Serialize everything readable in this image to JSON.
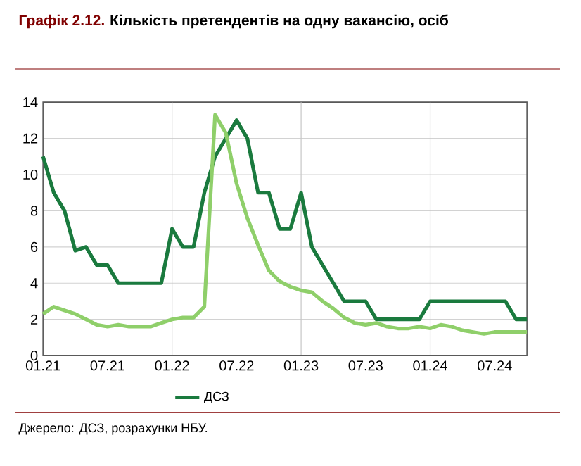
{
  "chart_data": {
    "type": "line",
    "title": "Графік 2.12.",
    "subtitle": "Кількість претендентів на одну вакансію, осіб",
    "annotations": [
      "Джерело: ДСЗ, розрахунки НБУ."
    ],
    "x": [
      "2021-01",
      "2021-02",
      "2021-03",
      "2021-04",
      "2021-05",
      "2021-06",
      "2021-07",
      "2021-08",
      "2021-09",
      "2021-10",
      "2021-11",
      "2021-12",
      "2022-01",
      "2022-02",
      "2022-03",
      "2022-04",
      "2022-05",
      "2022-06",
      "2022-07",
      "2022-08",
      "2022-09",
      "2022-10",
      "2022-11",
      "2022-12",
      "2023-01",
      "2023-02",
      "2023-03",
      "2023-04",
      "2023-05",
      "2023-06",
      "2023-07",
      "2023-08",
      "2023-09",
      "2023-10",
      "2023-11",
      "2023-12",
      "2024-01",
      "2024-02",
      "2024-03",
      "2024-04",
      "2024-05",
      "2024-06",
      "2024-07",
      "2024-08",
      "2024-09",
      "2024-10"
    ],
    "series": [
      {
        "name": "ДСЗ",
        "color": "#1a7a3e",
        "values": [
          11,
          9,
          8,
          5.8,
          6,
          5,
          5,
          4,
          4,
          4,
          4,
          4,
          7,
          6,
          6,
          9,
          11,
          12,
          13,
          12,
          9,
          9,
          7,
          7,
          9,
          6,
          5,
          4,
          3,
          3,
          3,
          2,
          2,
          2,
          2,
          2,
          3,
          3,
          3,
          3,
          3,
          3,
          3,
          3,
          2,
          2
        ]
      },
      {
        "color": "#8fcf6a",
        "values": [
          2.3,
          2.7,
          2.5,
          2.3,
          2.0,
          1.7,
          1.6,
          1.7,
          1.6,
          1.6,
          1.6,
          1.8,
          2.0,
          2.1,
          2.1,
          2.7,
          13.3,
          12.3,
          9.5,
          7.6,
          6.1,
          4.7,
          4.1,
          3.8,
          3.6,
          3.5,
          3.0,
          2.6,
          2.1,
          1.8,
          1.7,
          1.8,
          1.6,
          1.5,
          1.5,
          1.6,
          1.5,
          1.7,
          1.6,
          1.4,
          1.3,
          1.2,
          1.3,
          1.3,
          1.3,
          1.3
        ]
      }
    ],
    "xlim": [
      "2021-01",
      "2024-10"
    ],
    "xticks": [
      {
        "value": "2021-01",
        "label": "01.21"
      },
      {
        "value": "2021-07",
        "label": "07.21"
      },
      {
        "value": "2022-01",
        "label": "01.22"
      },
      {
        "value": "2022-07",
        "label": "07.22"
      },
      {
        "value": "2023-01",
        "label": "01.23"
      },
      {
        "value": "2023-07",
        "label": "07.23"
      },
      {
        "value": "2024-01",
        "label": "01.24"
      },
      {
        "value": "2024-07",
        "label": "07.24"
      }
    ],
    "ylim": [
      0,
      14
    ],
    "yticks": [
      0,
      2,
      4,
      6,
      8,
      10,
      12,
      14
    ],
    "grid": true,
    "legend": "bottom",
    "marker": "none",
    "line_style": "solid"
  }
}
